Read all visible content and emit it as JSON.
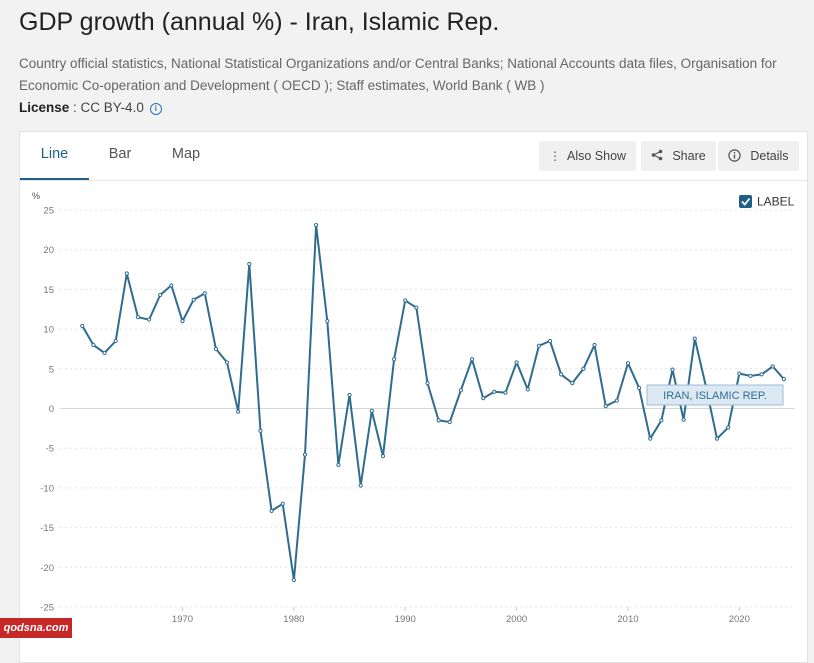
{
  "page": {
    "title": "GDP growth (annual %) - Iran, Islamic Rep.",
    "source": "Country official statistics, National Statistical Organizations and/or Central Banks; National Accounts data files, Organisation for Economic Co-operation and Development ( OECD ); Staff estimates, World Bank ( WB )",
    "license_label": "License",
    "license_sep": " : ",
    "license_value": "CC BY-4.0",
    "info_glyph": "i"
  },
  "tabs": [
    "Line",
    "Bar",
    "Map"
  ],
  "toolbar": {
    "also_show": "Also Show",
    "share": "Share",
    "details": "Details"
  },
  "label_toggle": {
    "text": "LABEL",
    "checked": true
  },
  "watermark": "qodsna.com",
  "chart_data": {
    "type": "line",
    "title": "GDP growth (annual %) - Iran, Islamic Rep.",
    "ylabel": "%",
    "xlabel": "",
    "ylim": [
      -25,
      25
    ],
    "xlim": [
      1959,
      2025
    ],
    "yticks": [
      25,
      20,
      15,
      10,
      5,
      0,
      -5,
      -10,
      -15,
      -20,
      -25
    ],
    "xticks": [
      1970,
      1980,
      1990,
      2000,
      2010,
      2020
    ],
    "grid": true,
    "color": "#2f6c8f",
    "series": [
      {
        "name": "IRAN, ISLAMIC REP.",
        "x": [
          1961,
          1962,
          1963,
          1964,
          1965,
          1966,
          1967,
          1968,
          1969,
          1970,
          1971,
          1972,
          1973,
          1974,
          1975,
          1976,
          1977,
          1978,
          1979,
          1980,
          1981,
          1982,
          1983,
          1984,
          1985,
          1986,
          1987,
          1988,
          1989,
          1990,
          1991,
          1992,
          1993,
          1994,
          1995,
          1996,
          1997,
          1998,
          1999,
          2000,
          2001,
          2002,
          2003,
          2004,
          2005,
          2006,
          2007,
          2008,
          2009,
          2010,
          2011,
          2012,
          2013,
          2014,
          2015,
          2016,
          2017,
          2018,
          2019,
          2020,
          2021,
          2022,
          2023,
          2024
        ],
        "values": [
          10.4,
          8.0,
          7.0,
          8.5,
          17.0,
          11.5,
          11.2,
          14.3,
          15.5,
          11.0,
          13.7,
          14.5,
          7.5,
          5.8,
          -0.4,
          18.2,
          -2.8,
          -12.9,
          -12.0,
          -21.6,
          -5.8,
          23.1,
          11.0,
          -7.1,
          1.7,
          -9.7,
          -0.3,
          -6.0,
          6.2,
          13.6,
          12.7,
          3.2,
          -1.5,
          -1.7,
          2.3,
          6.2,
          1.3,
          2.1,
          2.0,
          5.8,
          2.4,
          7.9,
          8.5,
          4.3,
          3.2,
          5.0,
          8.0,
          0.3,
          1.0,
          5.7,
          2.6,
          -3.8,
          -1.5,
          4.9,
          -1.4,
          8.8,
          2.8,
          -3.8,
          -2.4,
          4.4,
          4.1,
          4.3,
          5.3,
          3.7
        ]
      }
    ],
    "series_label": "IRAN, ISLAMIC REP."
  }
}
